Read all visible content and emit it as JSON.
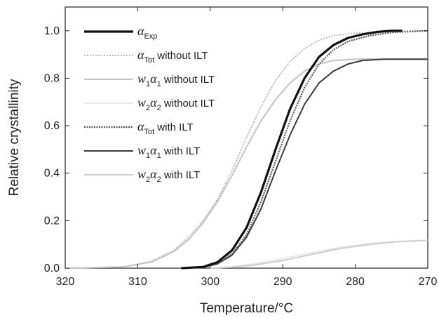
{
  "chart_data": {
    "type": "line",
    "xlabel": "Temperature/°C",
    "ylabel": "Relative crystallinity",
    "xlim": [
      320,
      270
    ],
    "ylim": [
      0,
      1.1
    ],
    "x_reversed": true,
    "xticks": [
      "320",
      "310",
      "300",
      "290",
      "280",
      "270"
    ],
    "yticks": [
      "0.0",
      "0.2",
      "0.4",
      "0.6",
      "0.8",
      "1.0"
    ],
    "legend_position": "top-left",
    "grid": false,
    "series": [
      {
        "id": "alpha_exp",
        "name": "α_Exp",
        "legend": {
          "symbol": "α",
          "sub": "Exp",
          "suffix": ""
        },
        "color": "#111111",
        "width": 3.2,
        "dash": "",
        "points": [
          [
            304,
            0
          ],
          [
            301,
            0.005
          ],
          [
            299,
            0.025
          ],
          [
            297,
            0.075
          ],
          [
            295,
            0.17
          ],
          [
            293,
            0.32
          ],
          [
            291,
            0.5
          ],
          [
            289,
            0.67
          ],
          [
            287,
            0.8
          ],
          [
            285,
            0.89
          ],
          [
            283,
            0.94
          ],
          [
            281,
            0.97
          ],
          [
            279,
            0.985
          ],
          [
            277,
            0.995
          ],
          [
            275,
            1.0
          ],
          [
            273.5,
            1.0
          ]
        ]
      },
      {
        "id": "alpha_tot_without",
        "name": "α_Tot without ILT",
        "legend": {
          "symbol": "α",
          "sub": "Tot",
          "suffix": " without ILT"
        },
        "color": "#b0b0b0",
        "width": 1.8,
        "dash": "2,2",
        "points": [
          [
            320,
            0
          ],
          [
            312,
            0.005
          ],
          [
            308,
            0.03
          ],
          [
            305,
            0.075
          ],
          [
            303,
            0.13
          ],
          [
            301,
            0.2
          ],
          [
            299,
            0.29
          ],
          [
            297,
            0.41
          ],
          [
            295,
            0.55
          ],
          [
            293,
            0.68
          ],
          [
            291,
            0.79
          ],
          [
            289,
            0.87
          ],
          [
            287,
            0.925
          ],
          [
            285,
            0.96
          ],
          [
            283,
            0.98
          ],
          [
            280,
            0.99
          ],
          [
            275,
            0.998
          ],
          [
            270,
            1.0
          ]
        ]
      },
      {
        "id": "w1a1_without",
        "name": "w1α1 without ILT",
        "legend": {
          "symbol": "w",
          "sub": "1",
          "symbol2": "α",
          "sub2": "1",
          "suffix": " without ILT"
        },
        "color": "#c4c4c4",
        "width": 2.0,
        "dash": "",
        "points": [
          [
            320,
            0
          ],
          [
            312,
            0.005
          ],
          [
            308,
            0.027
          ],
          [
            305,
            0.07
          ],
          [
            303,
            0.12
          ],
          [
            301,
            0.19
          ],
          [
            299,
            0.28
          ],
          [
            297,
            0.39
          ],
          [
            295,
            0.51
          ],
          [
            293,
            0.62
          ],
          [
            291,
            0.71
          ],
          [
            289,
            0.78
          ],
          [
            287,
            0.83
          ],
          [
            285,
            0.86
          ],
          [
            283,
            0.875
          ],
          [
            280,
            0.88
          ],
          [
            275,
            0.882
          ],
          [
            270,
            0.882
          ]
        ]
      },
      {
        "id": "w2a2_without",
        "name": "w2α2 without ILT",
        "legend": {
          "symbol": "w",
          "sub": "2",
          "symbol2": "α",
          "sub2": "2",
          "suffix": " without ILT"
        },
        "color": "#e4e4e4",
        "width": 1.6,
        "dash": "",
        "points": [
          [
            300,
            0
          ],
          [
            297,
            0.006
          ],
          [
            294,
            0.018
          ],
          [
            290,
            0.04
          ],
          [
            286,
            0.065
          ],
          [
            282,
            0.088
          ],
          [
            278,
            0.104
          ],
          [
            274,
            0.113
          ],
          [
            270,
            0.118
          ]
        ]
      },
      {
        "id": "alpha_tot_with",
        "name": "α_Tot with ILT",
        "legend": {
          "symbol": "α",
          "sub": "Tot",
          "suffix": " with ILT"
        },
        "color": "#555555",
        "width": 2.2,
        "dash": "2,1.5",
        "points": [
          [
            304,
            0
          ],
          [
            301,
            0.004
          ],
          [
            299,
            0.02
          ],
          [
            297,
            0.06
          ],
          [
            295,
            0.14
          ],
          [
            293,
            0.28
          ],
          [
            291,
            0.45
          ],
          [
            289,
            0.62
          ],
          [
            287,
            0.76
          ],
          [
            285,
            0.86
          ],
          [
            283,
            0.92
          ],
          [
            281,
            0.955
          ],
          [
            278,
            0.98
          ],
          [
            275,
            0.993
          ],
          [
            270,
            1.0
          ]
        ]
      },
      {
        "id": "w1a1_with",
        "name": "w1α1 with ILT",
        "legend": {
          "symbol": "w",
          "sub": "1",
          "symbol2": "α",
          "sub2": "1",
          "suffix": " with ILT"
        },
        "color": "#3c3c3c",
        "width": 2.0,
        "dash": "",
        "points": [
          [
            304,
            0
          ],
          [
            301,
            0.004
          ],
          [
            299,
            0.018
          ],
          [
            297,
            0.055
          ],
          [
            295,
            0.13
          ],
          [
            293,
            0.25
          ],
          [
            291,
            0.41
          ],
          [
            289,
            0.56
          ],
          [
            287,
            0.69
          ],
          [
            285,
            0.78
          ],
          [
            283,
            0.83
          ],
          [
            281,
            0.86
          ],
          [
            279,
            0.875
          ],
          [
            276,
            0.88
          ],
          [
            273,
            0.88
          ],
          [
            270,
            0.88
          ]
        ]
      },
      {
        "id": "w2a2_with",
        "name": "w2α2 with ILT",
        "legend": {
          "symbol": "w",
          "sub": "2",
          "symbol2": "α",
          "sub2": "2",
          "suffix": " with ILT"
        },
        "color": "#cfcfcf",
        "width": 2.0,
        "dash": "",
        "points": [
          [
            300,
            0
          ],
          [
            297,
            0.004
          ],
          [
            294,
            0.013
          ],
          [
            290,
            0.032
          ],
          [
            286,
            0.058
          ],
          [
            282,
            0.083
          ],
          [
            278,
            0.1
          ],
          [
            274,
            0.112
          ],
          [
            270,
            0.117
          ]
        ]
      }
    ]
  }
}
